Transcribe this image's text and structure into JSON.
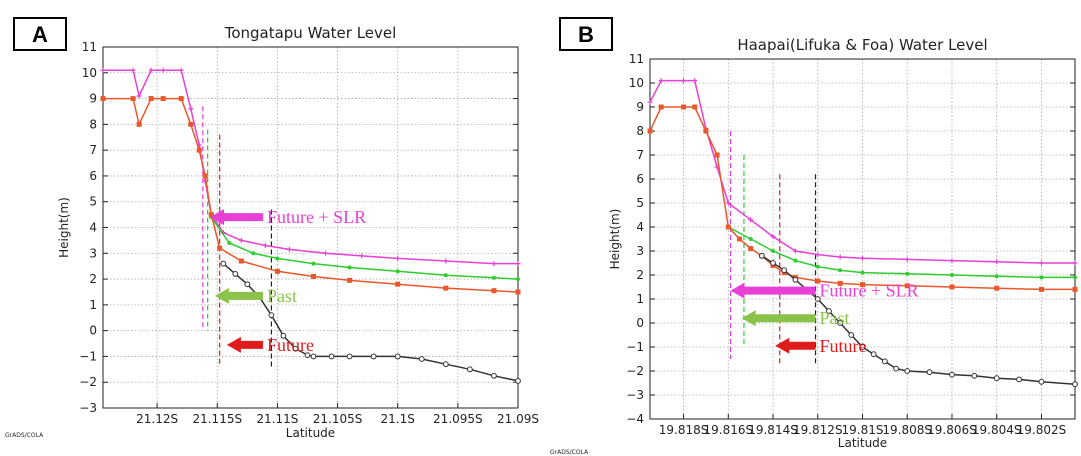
{
  "chart_data": [
    {
      "panel": "A",
      "type": "line",
      "title": "Tongatapu Water Level",
      "xlabel": "Latitude",
      "ylabel": "Height(m)",
      "credit": "GrADS/COLA",
      "x_tick_labels": [
        "21.12S",
        "21.115S",
        "21.11S",
        "21.105S",
        "21.1S",
        "21.095S",
        "21.09S"
      ],
      "x_ticks": [
        -21.12,
        -21.115,
        -21.11,
        -21.105,
        -21.1,
        -21.095,
        -21.09
      ],
      "xlim": [
        -21.1245,
        -21.09
      ],
      "ylim": [
        -3,
        11
      ],
      "y_ticks": [
        -3,
        -2,
        -1,
        0,
        1,
        2,
        3,
        4,
        5,
        6,
        7,
        8,
        9,
        10,
        11
      ],
      "grid": true,
      "series": [
        {
          "color": "#e83fd6",
          "marker": "plus",
          "x": [
            -21.1245,
            -21.122,
            -21.1215,
            -21.1205,
            -21.1195,
            -21.118,
            -21.1172,
            -21.1165,
            -21.116,
            -21.1155,
            -21.1145,
            -21.113,
            -21.111,
            -21.109,
            -21.106,
            -21.103,
            -21.1,
            -21.096,
            -21.092,
            -21.09
          ],
          "y": [
            10.1,
            10.1,
            9.1,
            10.1,
            10.1,
            10.1,
            8.6,
            7.2,
            5.8,
            4.5,
            3.8,
            3.5,
            3.3,
            3.15,
            3.0,
            2.9,
            2.8,
            2.7,
            2.6,
            2.6
          ]
        },
        {
          "color": "#2ecc2e",
          "marker": "dot",
          "x": [
            -21.1155,
            -21.114,
            -21.112,
            -21.11,
            -21.107,
            -21.104,
            -21.1,
            -21.096,
            -21.092,
            -21.09
          ],
          "y": [
            4.4,
            3.4,
            3.0,
            2.8,
            2.6,
            2.45,
            2.3,
            2.15,
            2.05,
            2.0
          ]
        },
        {
          "color": "#e8582a",
          "marker": "square",
          "x": [
            -21.1245,
            -21.122,
            -21.1215,
            -21.1205,
            -21.1195,
            -21.118,
            -21.1172,
            -21.1165,
            -21.116,
            -21.1155,
            -21.1148,
            -21.113,
            -21.11,
            -21.107,
            -21.104,
            -21.1,
            -21.096,
            -21.092,
            -21.09
          ],
          "y": [
            9.0,
            9.0,
            8.0,
            9.0,
            9.0,
            9.0,
            8.0,
            7.0,
            6.0,
            4.5,
            3.2,
            2.7,
            2.3,
            2.1,
            1.95,
            1.8,
            1.65,
            1.55,
            1.5
          ]
        },
        {
          "color": "#333333",
          "marker": "circle",
          "x": [
            -21.1145,
            -21.1135,
            -21.1125,
            -21.1115,
            -21.1105,
            -21.1095,
            -21.1085,
            -21.1075,
            -21.107,
            -21.1055,
            -21.104,
            -21.102,
            -21.1,
            -21.098,
            -21.096,
            -21.094,
            -21.092,
            -21.09
          ],
          "y": [
            2.6,
            2.2,
            1.8,
            1.3,
            0.6,
            -0.2,
            -0.7,
            -0.95,
            -1.0,
            -1.0,
            -1.0,
            -1.0,
            -1.0,
            -1.1,
            -1.3,
            -1.5,
            -1.75,
            -1.95
          ]
        }
      ],
      "vlines": [
        {
          "color": "#e83fd6",
          "x": -21.1162,
          "y": [
            0.0,
            8.7
          ]
        },
        {
          "color": "#2ecc2e",
          "x": -21.1158,
          "y": [
            0.0,
            7.8
          ]
        },
        {
          "color": "#e01b1b",
          "x": -21.1148,
          "y": [
            -1.4,
            7.6
          ]
        },
        {
          "color": "#222222",
          "x": -21.1105,
          "y": [
            -1.4,
            4.7
          ]
        }
      ],
      "annotations": [
        {
          "text": "Future + SLR",
          "color": "#e83fd6",
          "x_start": -21.1112,
          "x_end": -21.1156,
          "y": 4.4
        },
        {
          "text": "Past",
          "color": "#8bc34a",
          "x_start": -21.1112,
          "x_end": -21.1152,
          "y": 1.35
        },
        {
          "text": "Future",
          "color": "#e01b1b",
          "x_start": -21.1112,
          "x_end": -21.1142,
          "y": -0.55
        }
      ]
    },
    {
      "panel": "B",
      "type": "line",
      "title": "Haapai(Lifuka & Foa) Water Level",
      "xlabel": "Latitude",
      "ylabel": "Height(m)",
      "credit": "GrADS/COLA",
      "x_tick_labels": [
        "19.818S",
        "19.816S",
        "19.814S",
        "19.812S",
        "19.81S",
        "19.808S",
        "19.806S",
        "19.804S",
        "19.802S"
      ],
      "x_ticks": [
        -19.818,
        -19.816,
        -19.814,
        -19.812,
        -19.81,
        -19.808,
        -19.806,
        -19.804,
        -19.802
      ],
      "xlim": [
        -19.8195,
        -19.8005
      ],
      "ylim": [
        -4,
        11
      ],
      "y_ticks": [
        -4,
        -3,
        -2,
        -1,
        0,
        1,
        2,
        3,
        4,
        5,
        6,
        7,
        8,
        9,
        10,
        11
      ],
      "grid": true,
      "series": [
        {
          "color": "#e83fd6",
          "marker": "plus",
          "x": [
            -19.8195,
            -19.819,
            -19.818,
            -19.8175,
            -19.817,
            -19.8165,
            -19.816,
            -19.815,
            -19.814,
            -19.813,
            -19.812,
            -19.811,
            -19.81,
            -19.808,
            -19.806,
            -19.804,
            -19.802,
            -19.8005
          ],
          "y": [
            9.2,
            10.1,
            10.1,
            10.1,
            8.1,
            6.5,
            5.0,
            4.3,
            3.6,
            3.0,
            2.85,
            2.75,
            2.7,
            2.65,
            2.6,
            2.55,
            2.5,
            2.5
          ]
        },
        {
          "color": "#2ecc2e",
          "marker": "dot",
          "x": [
            -19.816,
            -19.815,
            -19.814,
            -19.813,
            -19.812,
            -19.811,
            -19.81,
            -19.808,
            -19.806,
            -19.804,
            -19.802,
            -19.8005
          ],
          "y": [
            4.0,
            3.5,
            3.0,
            2.6,
            2.35,
            2.2,
            2.1,
            2.05,
            2.0,
            1.95,
            1.9,
            1.9
          ]
        },
        {
          "color": "#e8582a",
          "marker": "square",
          "x": [
            -19.8195,
            -19.819,
            -19.818,
            -19.8175,
            -19.817,
            -19.8165,
            -19.816,
            -19.8155,
            -19.815,
            -19.8145,
            -19.814,
            -19.8135,
            -19.813,
            -19.812,
            -19.811,
            -19.81,
            -19.808,
            -19.806,
            -19.804,
            -19.802,
            -19.8005
          ],
          "y": [
            8.0,
            9.0,
            9.0,
            9.0,
            8.0,
            7.0,
            4.0,
            3.5,
            3.1,
            2.8,
            2.4,
            2.1,
            1.9,
            1.75,
            1.65,
            1.6,
            1.55,
            1.5,
            1.45,
            1.4,
            1.4
          ]
        },
        {
          "color": "#333333",
          "marker": "circle",
          "x": [
            -19.8145,
            -19.814,
            -19.8135,
            -19.813,
            -19.8125,
            -19.812,
            -19.8115,
            -19.811,
            -19.8105,
            -19.81,
            -19.8095,
            -19.809,
            -19.8085,
            -19.808,
            -19.807,
            -19.806,
            -19.805,
            -19.804,
            -19.803,
            -19.802,
            -19.8005
          ],
          "y": [
            2.8,
            2.5,
            2.2,
            1.8,
            1.4,
            1.0,
            0.5,
            0.0,
            -0.5,
            -1.0,
            -1.3,
            -1.6,
            -1.9,
            -2.0,
            -2.05,
            -2.15,
            -2.2,
            -2.3,
            -2.35,
            -2.45,
            -2.55
          ]
        }
      ],
      "vlines": [
        {
          "color": "#e83fd6",
          "x": -19.8159,
          "y": [
            -1.5,
            8.0
          ]
        },
        {
          "color": "#2ecc2e",
          "x": -19.8153,
          "y": [
            -1.0,
            7.0
          ]
        },
        {
          "color": "#e01b1b",
          "x": -19.8137,
          "y": [
            -1.8,
            6.2
          ]
        },
        {
          "color": "#222222",
          "x": -19.8121,
          "y": [
            -1.8,
            6.2
          ]
        }
      ],
      "annotations": [
        {
          "text": "Future + SLR",
          "color": "#e83fd6",
          "x_start": -19.8121,
          "x_end": -19.8159,
          "y": 1.35
        },
        {
          "text": "Past",
          "color": "#8bc34a",
          "x_start": -19.8121,
          "x_end": -19.8154,
          "y": 0.2
        },
        {
          "text": "Future",
          "color": "#e01b1b",
          "x_start": -19.8121,
          "x_end": -19.8139,
          "y": -0.95
        }
      ]
    }
  ]
}
